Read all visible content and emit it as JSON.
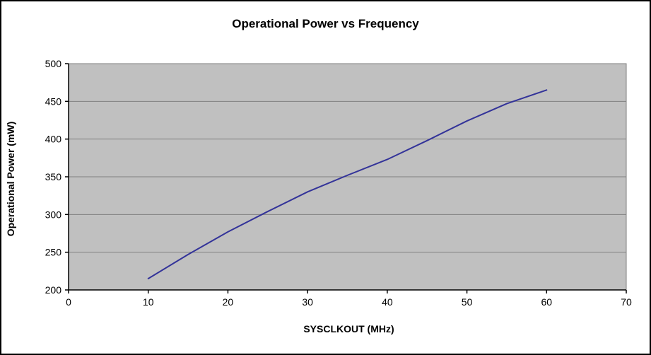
{
  "chart_data": {
    "type": "line",
    "title": "Operational Power vs Frequency",
    "xlabel": "SYSCLKOUT (MHz)",
    "ylabel": "Operational Power (mW)",
    "xlim": [
      0,
      70
    ],
    "ylim": [
      200,
      500
    ],
    "x_ticks": [
      0,
      10,
      20,
      30,
      40,
      50,
      60,
      70
    ],
    "y_ticks": [
      200,
      250,
      300,
      350,
      400,
      450,
      500
    ],
    "grid": "horizontal",
    "legend": "none",
    "plot_area_color": "#c0c0c0",
    "gridline_color": "#808080",
    "axis_color": "#000000",
    "series": [
      {
        "name": "Operational Power",
        "color": "#333399",
        "x": [
          10,
          15,
          20,
          25,
          30,
          35,
          40,
          45,
          50,
          55,
          60
        ],
        "y": [
          215,
          247,
          277,
          304,
          330,
          352,
          373,
          398,
          424,
          447,
          465
        ]
      }
    ]
  }
}
